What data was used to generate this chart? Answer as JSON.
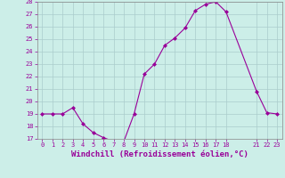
{
  "x": [
    0,
    1,
    2,
    3,
    4,
    5,
    6,
    7,
    8,
    9,
    10,
    11,
    12,
    13,
    14,
    15,
    16,
    17,
    18,
    21,
    22,
    23
  ],
  "y": [
    19,
    19,
    19,
    19.5,
    18.2,
    17.5,
    17.1,
    16.8,
    16.8,
    19.0,
    22.2,
    23.0,
    24.5,
    25.1,
    25.9,
    27.3,
    27.8,
    28.0,
    27.2,
    20.8,
    19.1,
    19.0
  ],
  "line_color": "#990099",
  "marker": "D",
  "marker_size": 2.0,
  "bg_color": "#cceee8",
  "grid_color": "#aacccc",
  "xlabel": "Windchill (Refroidissement éolien,°C)",
  "xlabel_color": "#990099",
  "ylim": [
    17,
    28
  ],
  "yticks": [
    17,
    18,
    19,
    20,
    21,
    22,
    23,
    24,
    25,
    26,
    27,
    28
  ],
  "xticks": [
    0,
    1,
    2,
    3,
    4,
    5,
    6,
    7,
    8,
    9,
    10,
    11,
    12,
    13,
    14,
    15,
    16,
    17,
    18,
    21,
    22,
    23
  ],
  "tick_color": "#990099",
  "tick_fontsize": 5.0,
  "xlabel_fontsize": 6.5,
  "linewidth": 0.8
}
